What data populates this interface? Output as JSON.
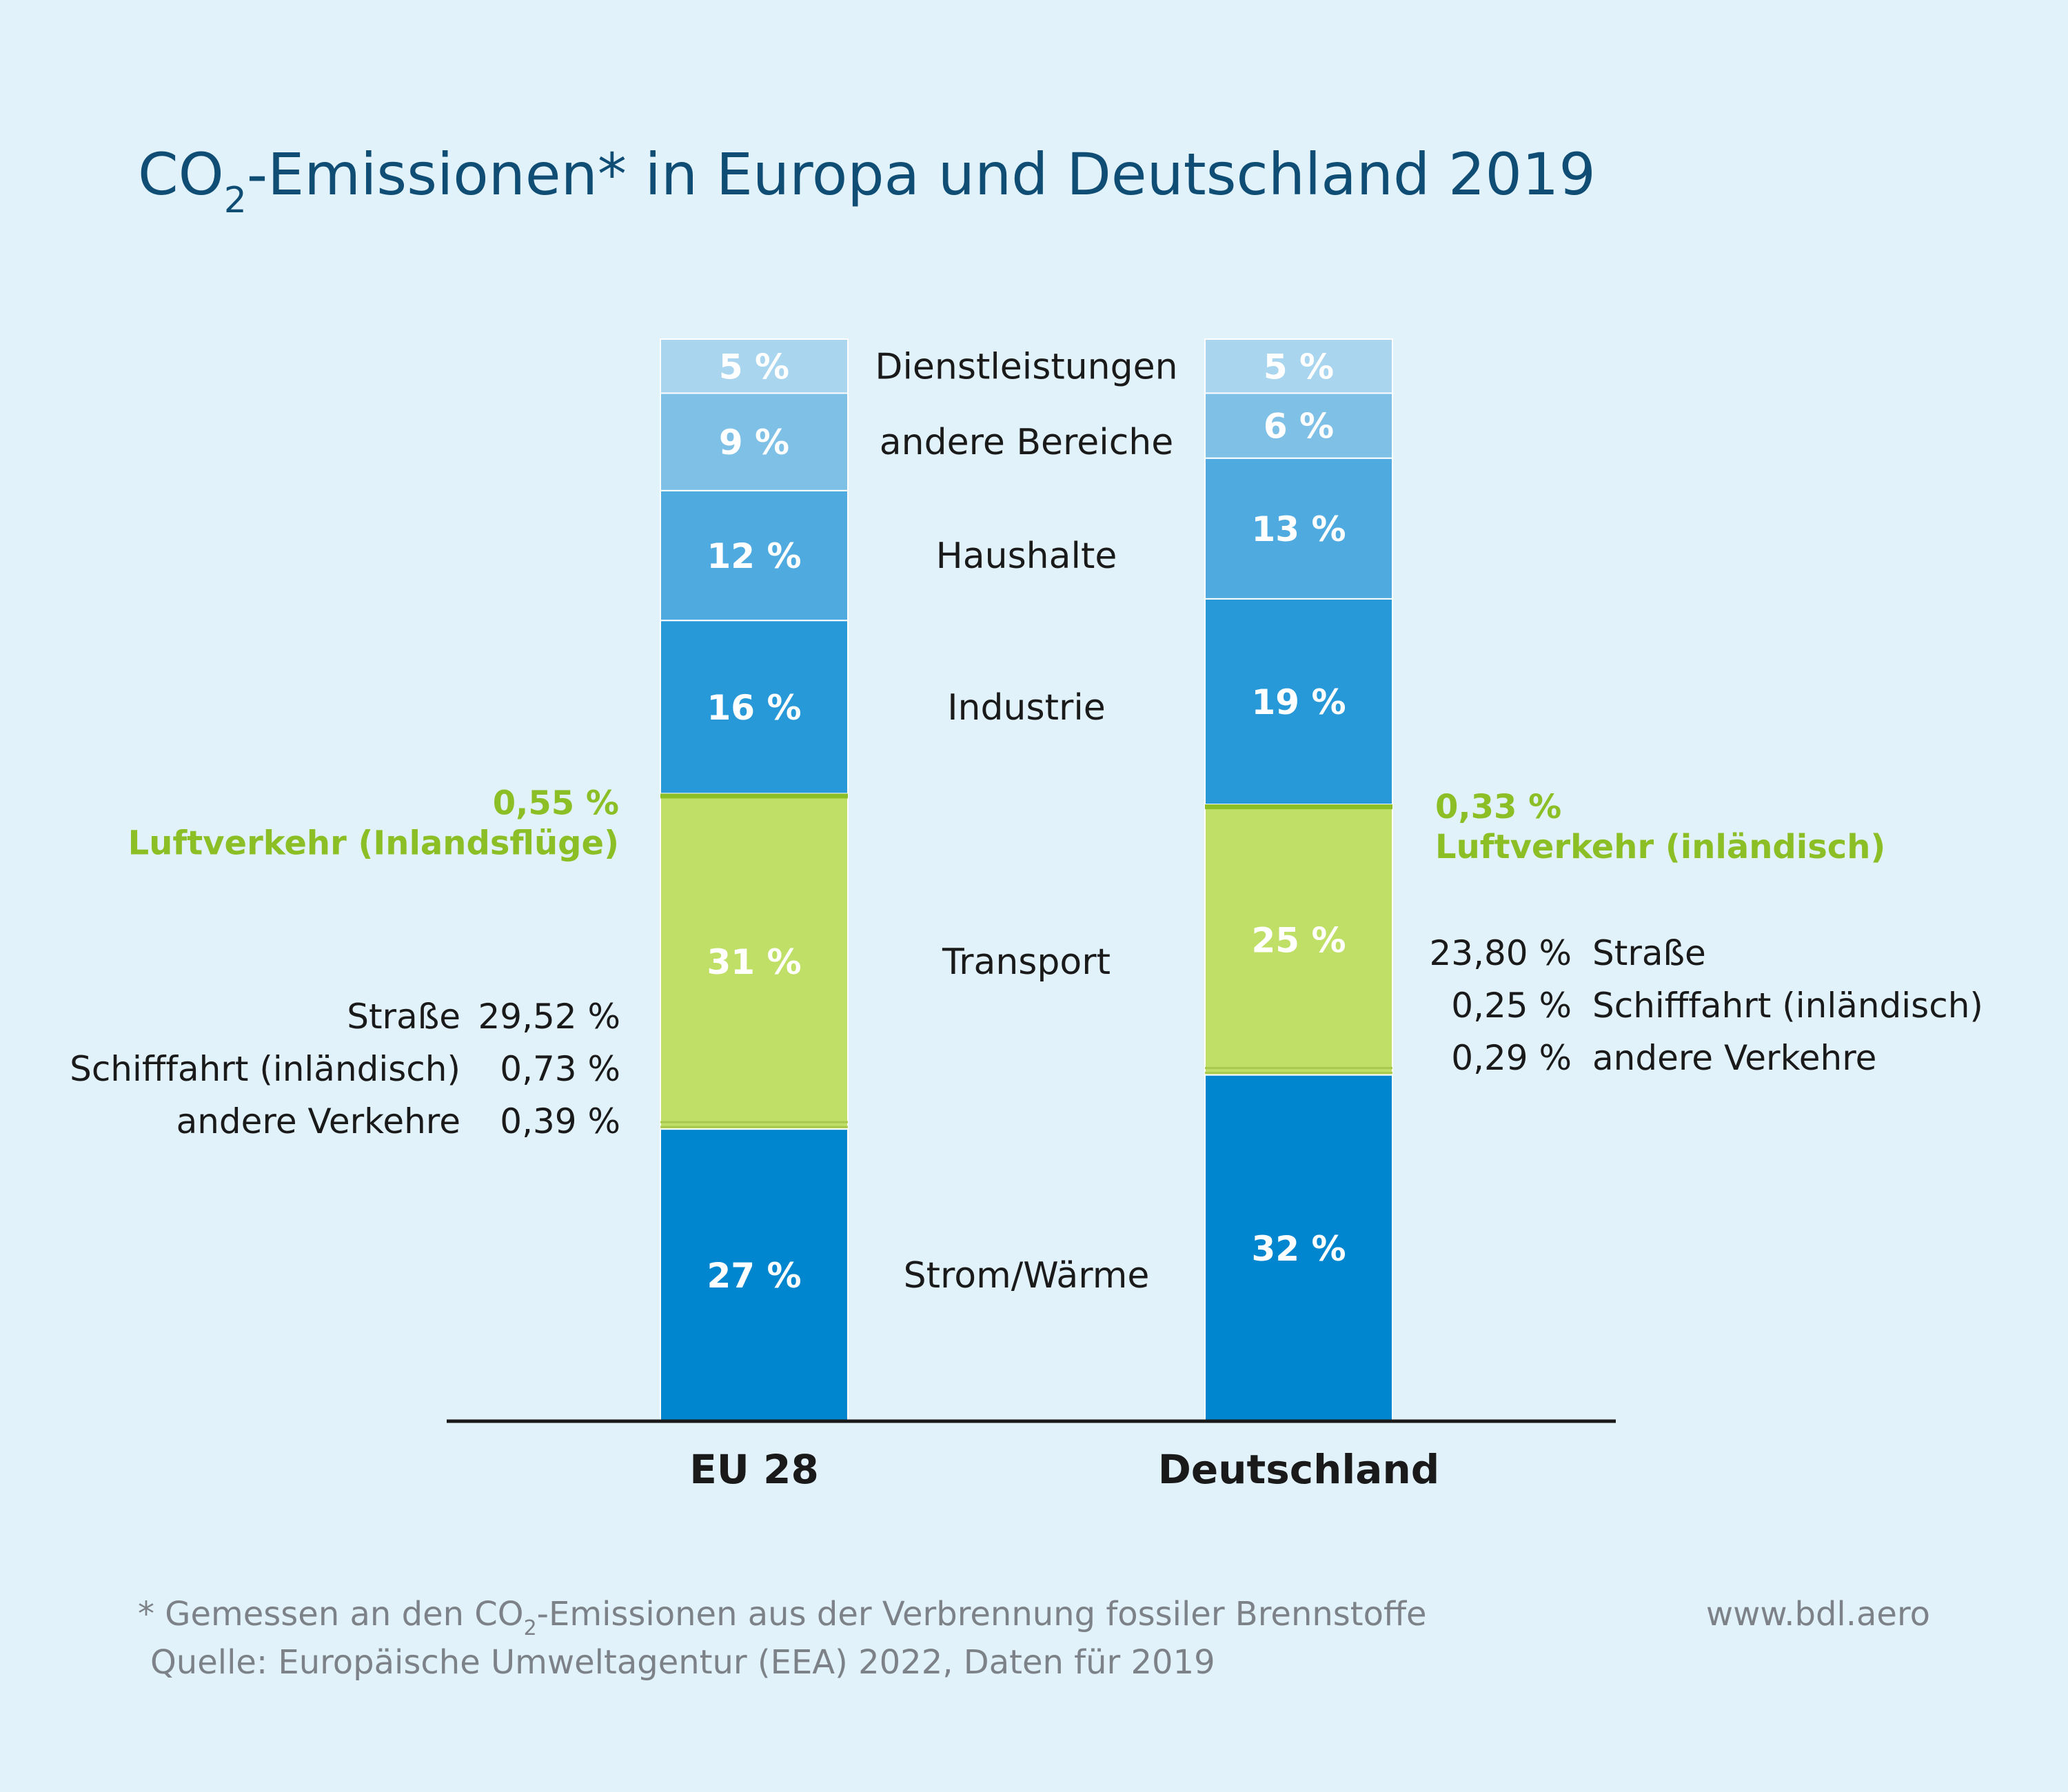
{
  "chart_data": {
    "type": "bar",
    "stacked": true,
    "title": {
      "prefix": "CO",
      "subscript": "2",
      "suffix": "-Emissionen* in Europa und Deutschland 2019"
    },
    "categories": [
      "EU 28",
      "Deutschland"
    ],
    "series": [
      {
        "name": "Strom/Wärme",
        "color": "#0086cf",
        "values": [
          27,
          32
        ],
        "labels": [
          "27 %",
          "32 %"
        ]
      },
      {
        "name": "Transport",
        "color": "#c0df66",
        "values": [
          31,
          25
        ],
        "labels": [
          "31 %",
          "25 %"
        ]
      },
      {
        "name": "Industrie",
        "color": "#2799d8",
        "values": [
          16,
          19
        ],
        "labels": [
          "16 %",
          "19 %"
        ]
      },
      {
        "name": "Haushalte",
        "color": "#4eaadf",
        "values": [
          12,
          13
        ],
        "labels": [
          "12 %",
          "13 %"
        ]
      },
      {
        "name": "andere Bereiche",
        "color": "#7fc1e6",
        "values": [
          9,
          6
        ],
        "labels": [
          "9 %",
          "6 %"
        ]
      },
      {
        "name": "Dienstleistungen",
        "color": "#a9d6ee",
        "values": [
          5,
          5
        ],
        "labels": [
          "5 %",
          "5 %"
        ]
      }
    ],
    "transport_breakdown": [
      {
        "category": "EU 28",
        "air_value": "0,55 %",
        "air_label": "Luftverkehr (Inlandsflüge)",
        "items": [
          {
            "name": "Straße",
            "value": "29,52 %"
          },
          {
            "name": "Schifffahrt (inländisch)",
            "value": "0,73 %"
          },
          {
            "name": "andere Verkehre",
            "value": "0,39 %"
          }
        ]
      },
      {
        "category": "Deutschland",
        "air_value": "0,33 %",
        "air_label": "Luftverkehr (inländisch)",
        "items": [
          {
            "name": "Straße",
            "value": "23,80 %"
          },
          {
            "name": "Schifffahrt (inländisch)",
            "value": "0,25 %"
          },
          {
            "name": "andere Verkehre",
            "value": "0,29 %"
          }
        ]
      }
    ],
    "air_color": "#8cbf26"
  },
  "footnote": {
    "line1_prefix": "* Gemessen an den CO",
    "line1_subscript": "2",
    "line1_suffix": "-Emissionen aus der Verbrennung fossiler Brennstoffe",
    "source": "Quelle: Europäische Umweltagentur (EEA) 2022, Daten für 2019",
    "website": "www.bdl.aero"
  }
}
